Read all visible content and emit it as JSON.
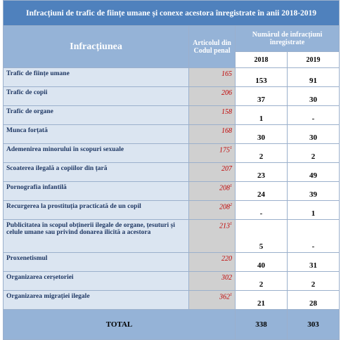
{
  "header": {
    "title": "Infracțiuni de trafic de ființe umane și conexe acestora înregistrate în anii 2018-2019"
  },
  "table": {
    "columns": {
      "offence": "Infracțiunea",
      "article": "Articolul din Codul penal",
      "count": "Numărul de infracțiuni înregistrate",
      "years": [
        "2018",
        "2019"
      ]
    },
    "rows": [
      {
        "name": "Trafic de ființe umane",
        "article": "165",
        "values": [
          "153",
          "91"
        ]
      },
      {
        "name": "Trafic de copii",
        "article": "206",
        "values": [
          "37",
          "30"
        ]
      },
      {
        "name": "Trafic de organe",
        "article": "158",
        "values": [
          "1",
          "-"
        ]
      },
      {
        "name": "Munca forțată",
        "article": "168",
        "values": [
          "30",
          "30"
        ]
      },
      {
        "name": "Ademenirea minorului în scopuri sexuale",
        "article": "175",
        "sup": "1",
        "values": [
          "2",
          "2"
        ]
      },
      {
        "name": "Scoaterea ilegală a copiilor din țară",
        "article": "207",
        "values": [
          "23",
          "49"
        ]
      },
      {
        "name": "Pornografia infantilă",
        "article": "208",
        "sup": "1",
        "values": [
          "24",
          "39"
        ]
      },
      {
        "name": "Recurgerea la prostituția practicată de un copil",
        "article": "208",
        "sup": "2",
        "values": [
          "-",
          "1"
        ]
      },
      {
        "name": "Publicitatea în scopul obținerii ilegale de organe, țesuturi și celule umane sau privind donarea ilicită a acestora",
        "article": "213",
        "sup": "1",
        "values": [
          "5",
          "-"
        ]
      },
      {
        "name": "Proxenetismul",
        "article": "220",
        "values": [
          "40",
          "31"
        ]
      },
      {
        "name": "Organizarea cerșetoriei",
        "article": "302",
        "values": [
          "2",
          "2"
        ]
      },
      {
        "name": "Organizarea migrației ilegale",
        "article": "362",
        "sup": "1",
        "values": [
          "21",
          "28"
        ]
      }
    ],
    "total": {
      "label": "TOTAL",
      "values": [
        "338",
        "303"
      ]
    }
  }
}
